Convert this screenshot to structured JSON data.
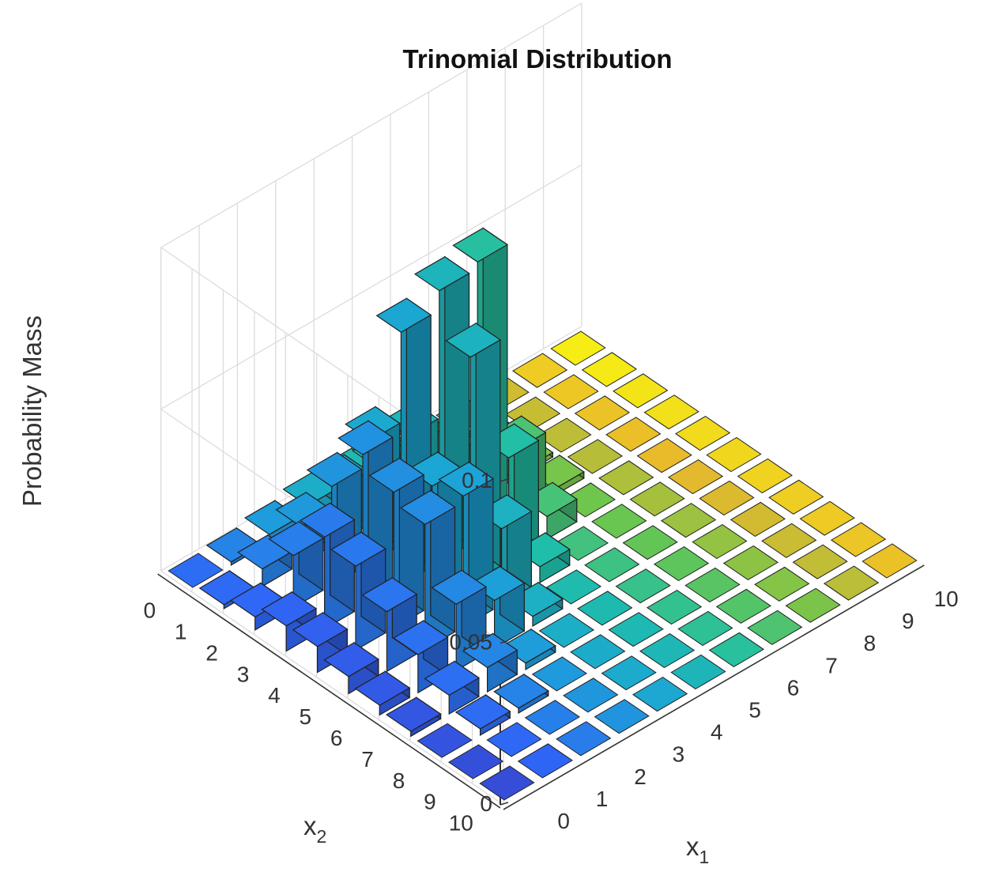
{
  "chart_data": {
    "type": "bar3",
    "title": "Trinomial Distribution",
    "zlabel": "Probability Mass",
    "xlabel": {
      "base": "x",
      "sub": "1"
    },
    "ylabel": {
      "base": "x",
      "sub": "2"
    },
    "x_categories": [
      "0",
      "1",
      "2",
      "3",
      "4",
      "5",
      "6",
      "7",
      "8",
      "9",
      "10"
    ],
    "y_categories": [
      "0",
      "1",
      "2",
      "3",
      "4",
      "5",
      "6",
      "7",
      "8",
      "9",
      "10"
    ],
    "zlim": [
      0,
      0.1
    ],
    "z_ticks": [
      "0",
      "0.05",
      "0.1"
    ],
    "grid": true,
    "colormap": "parula",
    "colors": {
      "low": "#3e26a8",
      "mid": "#1fb3c4",
      "high": "#f9fb0e",
      "edge": "#111111"
    },
    "values_note_rows_are_x2": true,
    "values": [
      [
        0.0002,
        0.001,
        0.0026,
        0.0046,
        0.005,
        0.0036,
        0.0016,
        0.0005,
        0.0001,
        0.0,
        0.0
      ],
      [
        0.0012,
        0.0054,
        0.0117,
        0.0165,
        0.0162,
        0.0107,
        0.0047,
        0.0013,
        0.0002,
        0.0,
        0
      ],
      [
        0.004,
        0.0161,
        0.0306,
        0.0379,
        0.0324,
        0.0188,
        0.007,
        0.0014,
        0.0001,
        0,
        0
      ],
      [
        0.0078,
        0.0284,
        0.047,
        0.078,
        0.084,
        0.086,
        0.021,
        0.002,
        0,
        0,
        0
      ],
      [
        0.008,
        0.026,
        0.042,
        0.037,
        0.07,
        0.032,
        0.007,
        0,
        0,
        0,
        0
      ],
      [
        0.0053,
        0.0185,
        0.0386,
        0.0405,
        0.0235,
        0.0049,
        0,
        0,
        0,
        0,
        0
      ],
      [
        0.003,
        0.0118,
        0.0205,
        0.0148,
        0.003,
        0,
        0,
        0,
        0,
        0,
        0
      ],
      [
        0.0015,
        0.0058,
        0.0075,
        0.002,
        0,
        0,
        0,
        0,
        0,
        0,
        0
      ],
      [
        0.0005,
        0.002,
        0.0015,
        0,
        0,
        0,
        0,
        0,
        0,
        0,
        0
      ],
      [
        0.0001,
        0.0003,
        0,
        0,
        0,
        0,
        0,
        0,
        0,
        0,
        0
      ],
      [
        0.0,
        0,
        0,
        0,
        0,
        0,
        0,
        0,
        0,
        0,
        0
      ]
    ]
  }
}
